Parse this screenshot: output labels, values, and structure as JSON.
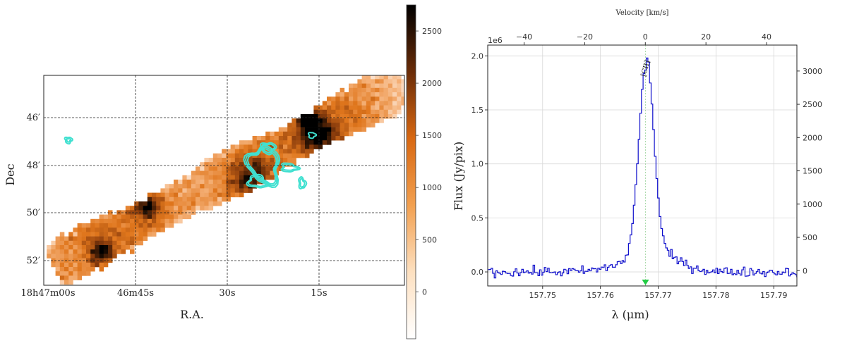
{
  "chart_data": [
    {
      "type": "heatmap",
      "xlabel": "R.A.",
      "ylabel": "Dec",
      "x_ticks": [
        "18h47m00s",
        "46m45s",
        "30s",
        "15s"
      ],
      "y_ticks": [
        "46′",
        "48′",
        "50′",
        "52′"
      ],
      "colorbar": {
        "ticks": [
          0,
          500,
          1000,
          1500,
          2000,
          2500
        ],
        "range": [
          -450,
          2750
        ],
        "colormap": [
          "#ffffff",
          "#f5b27a",
          "#e0761c",
          "#8a3c0c",
          "#000000"
        ]
      },
      "contour_color": "#40e0d0"
    },
    {
      "type": "line",
      "xlabel": "λ (μm)",
      "ylabel": "Flux (Jy/pix)",
      "top_xlabel": "Velocity [km/s]",
      "offset_label": "1e6",
      "line_label": "[CII]",
      "line_center": 157.7678,
      "x_ticks": [
        157.75,
        157.76,
        157.77,
        157.78,
        157.79
      ],
      "x_range": [
        157.7405,
        157.794
      ],
      "y_ticks": [
        0.0,
        0.5,
        1.0,
        1.5,
        2.0
      ],
      "y_range": [
        -0.13,
        2.1
      ],
      "right_ticks": [
        0,
        500,
        1000,
        1500,
        2000,
        2500,
        3000
      ],
      "right_range": [
        -230,
        3390
      ],
      "top_ticks": [
        -40,
        -20,
        0,
        20,
        40
      ],
      "top_range": [
        -52,
        50
      ],
      "series_color": "#1010cc",
      "marker_color": "#22cc44",
      "label_color": "#c9a6d8",
      "profile": {
        "baseline_noise": 0.045,
        "peak": 1.78,
        "center": 157.7678,
        "sigma": 0.0013,
        "wing_amp": 0.22,
        "wing_sigma": 0.0045
      }
    }
  ]
}
